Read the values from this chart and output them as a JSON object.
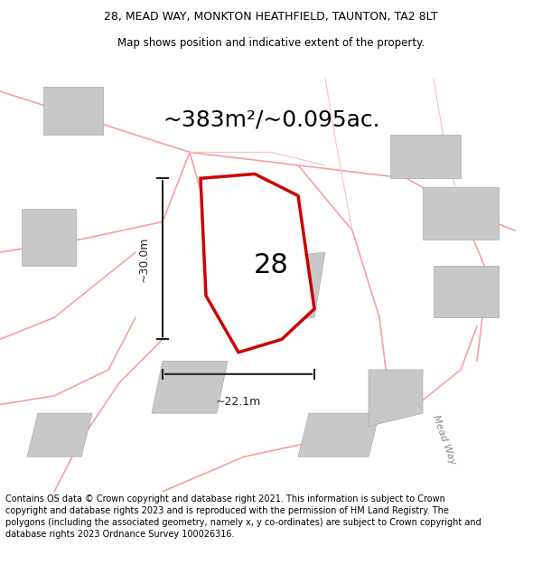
{
  "title_line1": "28, MEAD WAY, MONKTON HEATHFIELD, TAUNTON, TA2 8LT",
  "title_line2": "Map shows position and indicative extent of the property.",
  "area_text": "~383m²/~0.095ac.",
  "dim_vertical": "~30.0m",
  "dim_horizontal": "~22.1m",
  "number_label": "28",
  "street_label": "Mead Way",
  "copyright_text": "Contains OS data © Crown copyright and database right 2021. This information is subject to Crown copyright and database rights 2023 and is reproduced with the permission of HM Land Registry. The polygons (including the associated geometry, namely x, y co-ordinates) are subject to Crown copyright and database rights 2023 Ordnance Survey 100026316.",
  "bg_color": "#ffffff",
  "map_bg": "#f8f8f8",
  "road_color": "#f5a0a0",
  "road_color_light": "#f5c0c0",
  "property_color": "#cc0000",
  "property_fill": "#ffffff",
  "building_color": "#c8c8c8",
  "dim_color": "#222222",
  "title_fontsize": 9,
  "subtitle_fontsize": 8.5,
  "area_fontsize": 18,
  "label_fontsize": 22,
  "dim_fontsize": 9,
  "copyright_fontsize": 7
}
